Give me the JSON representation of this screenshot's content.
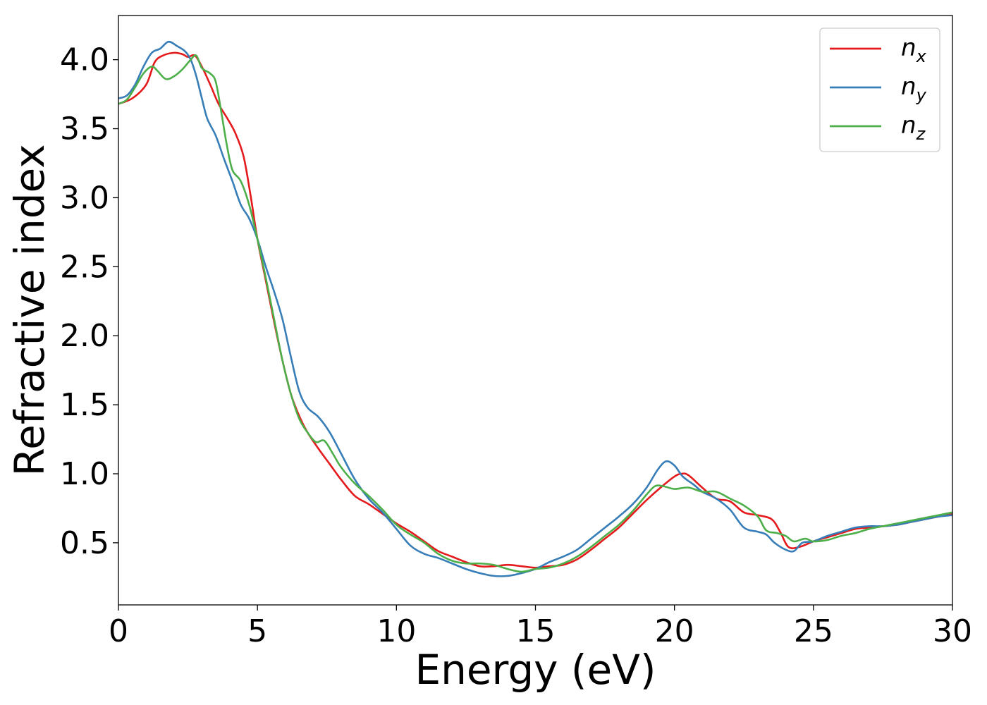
{
  "chart_data": {
    "type": "line",
    "title": "",
    "xlabel": "Energy (eV)",
    "ylabel": "Refractive index",
    "xlim": [
      0,
      30
    ],
    "ylim": [
      0.05,
      4.32
    ],
    "xticks": [
      0,
      5,
      10,
      15,
      20,
      25,
      30
    ],
    "xtick_labels": [
      "0",
      "5",
      "10",
      "15",
      "20",
      "25",
      "30"
    ],
    "yticks": [
      0.5,
      1.0,
      1.5,
      2.0,
      2.5,
      3.0,
      3.5,
      4.0
    ],
    "ytick_labels": [
      "0.5",
      "1.0",
      "1.5",
      "2.0",
      "2.5",
      "3.0",
      "3.5",
      "4.0"
    ],
    "grid": false,
    "legend_position": "top-right",
    "series": [
      {
        "name": "n",
        "subscript": "x",
        "color": "#e41a1c",
        "points": [
          [
            0,
            3.68
          ],
          [
            0.5,
            3.72
          ],
          [
            1.0,
            3.82
          ],
          [
            1.3,
            3.98
          ],
          [
            1.6,
            4.03
          ],
          [
            2.0,
            4.05
          ],
          [
            2.3,
            4.04
          ],
          [
            2.5,
            4.02
          ],
          [
            2.75,
            4.03
          ],
          [
            3.0,
            3.95
          ],
          [
            3.3,
            3.82
          ],
          [
            3.6,
            3.68
          ],
          [
            3.9,
            3.58
          ],
          [
            4.2,
            3.47
          ],
          [
            4.5,
            3.3
          ],
          [
            4.75,
            3.02
          ],
          [
            5.0,
            2.7
          ],
          [
            5.3,
            2.4
          ],
          [
            5.6,
            2.1
          ],
          [
            5.9,
            1.82
          ],
          [
            6.2,
            1.58
          ],
          [
            6.5,
            1.42
          ],
          [
            6.8,
            1.3
          ],
          [
            7.2,
            1.18
          ],
          [
            7.6,
            1.07
          ],
          [
            8.0,
            0.96
          ],
          [
            8.5,
            0.84
          ],
          [
            9.0,
            0.78
          ],
          [
            9.5,
            0.71
          ],
          [
            10.0,
            0.64
          ],
          [
            10.5,
            0.58
          ],
          [
            11.0,
            0.51
          ],
          [
            11.5,
            0.44
          ],
          [
            12.0,
            0.4
          ],
          [
            12.5,
            0.36
          ],
          [
            13.0,
            0.33
          ],
          [
            13.5,
            0.33
          ],
          [
            14.0,
            0.34
          ],
          [
            14.5,
            0.33
          ],
          [
            15.0,
            0.32
          ],
          [
            15.5,
            0.33
          ],
          [
            16.0,
            0.34
          ],
          [
            16.5,
            0.38
          ],
          [
            17.0,
            0.45
          ],
          [
            17.5,
            0.53
          ],
          [
            18.0,
            0.61
          ],
          [
            18.5,
            0.71
          ],
          [
            19.0,
            0.81
          ],
          [
            19.5,
            0.9
          ],
          [
            20.0,
            0.98
          ],
          [
            20.25,
            1.0
          ],
          [
            20.5,
            0.99
          ],
          [
            21.0,
            0.9
          ],
          [
            21.5,
            0.82
          ],
          [
            22.0,
            0.8
          ],
          [
            22.5,
            0.72
          ],
          [
            23.0,
            0.7
          ],
          [
            23.5,
            0.67
          ],
          [
            23.8,
            0.58
          ],
          [
            24.1,
            0.47
          ],
          [
            24.5,
            0.47
          ],
          [
            25.0,
            0.51
          ],
          [
            25.5,
            0.54
          ],
          [
            26.0,
            0.57
          ],
          [
            26.5,
            0.6
          ],
          [
            27.0,
            0.61
          ],
          [
            27.5,
            0.62
          ],
          [
            28.0,
            0.63
          ],
          [
            28.5,
            0.65
          ],
          [
            29.0,
            0.67
          ],
          [
            29.5,
            0.69
          ],
          [
            30.0,
            0.71
          ]
        ]
      },
      {
        "name": "n",
        "subscript": "y",
        "color": "#377eb8",
        "points": [
          [
            0,
            3.72
          ],
          [
            0.3,
            3.74
          ],
          [
            0.6,
            3.82
          ],
          [
            0.9,
            3.95
          ],
          [
            1.2,
            4.05
          ],
          [
            1.5,
            4.08
          ],
          [
            1.8,
            4.13
          ],
          [
            2.1,
            4.1
          ],
          [
            2.4,
            4.06
          ],
          [
            2.6,
            4.0
          ],
          [
            2.8,
            3.88
          ],
          [
            3.0,
            3.72
          ],
          [
            3.2,
            3.57
          ],
          [
            3.5,
            3.45
          ],
          [
            3.8,
            3.28
          ],
          [
            4.1,
            3.12
          ],
          [
            4.4,
            2.95
          ],
          [
            4.7,
            2.85
          ],
          [
            5.0,
            2.7
          ],
          [
            5.3,
            2.5
          ],
          [
            5.6,
            2.32
          ],
          [
            5.9,
            2.12
          ],
          [
            6.2,
            1.85
          ],
          [
            6.5,
            1.6
          ],
          [
            6.8,
            1.48
          ],
          [
            7.2,
            1.41
          ],
          [
            7.6,
            1.3
          ],
          [
            8.0,
            1.15
          ],
          [
            8.5,
            0.96
          ],
          [
            9.0,
            0.82
          ],
          [
            9.5,
            0.72
          ],
          [
            10.0,
            0.6
          ],
          [
            10.5,
            0.48
          ],
          [
            11.0,
            0.42
          ],
          [
            11.5,
            0.39
          ],
          [
            12.0,
            0.35
          ],
          [
            12.5,
            0.31
          ],
          [
            13.0,
            0.28
          ],
          [
            13.5,
            0.26
          ],
          [
            14.0,
            0.26
          ],
          [
            14.5,
            0.28
          ],
          [
            15.0,
            0.31
          ],
          [
            15.5,
            0.36
          ],
          [
            16.0,
            0.4
          ],
          [
            16.5,
            0.45
          ],
          [
            17.0,
            0.53
          ],
          [
            17.5,
            0.61
          ],
          [
            18.0,
            0.69
          ],
          [
            18.5,
            0.78
          ],
          [
            19.0,
            0.9
          ],
          [
            19.4,
            1.03
          ],
          [
            19.7,
            1.09
          ],
          [
            20.0,
            1.06
          ],
          [
            20.3,
            0.98
          ],
          [
            20.7,
            0.92
          ],
          [
            21.0,
            0.87
          ],
          [
            21.5,
            0.82
          ],
          [
            22.0,
            0.74
          ],
          [
            22.5,
            0.61
          ],
          [
            23.0,
            0.58
          ],
          [
            23.3,
            0.56
          ],
          [
            23.6,
            0.5
          ],
          [
            24.0,
            0.45
          ],
          [
            24.3,
            0.44
          ],
          [
            24.6,
            0.5
          ],
          [
            25.0,
            0.51
          ],
          [
            25.5,
            0.55
          ],
          [
            26.0,
            0.58
          ],
          [
            26.5,
            0.61
          ],
          [
            27.0,
            0.62
          ],
          [
            27.5,
            0.62
          ],
          [
            28.0,
            0.63
          ],
          [
            28.5,
            0.65
          ],
          [
            29.0,
            0.67
          ],
          [
            29.5,
            0.69
          ],
          [
            30.0,
            0.7
          ]
        ]
      },
      {
        "name": "n",
        "subscript": "z",
        "color": "#4daf4a",
        "points": [
          [
            0,
            3.68
          ],
          [
            0.3,
            3.71
          ],
          [
            0.6,
            3.8
          ],
          [
            0.9,
            3.9
          ],
          [
            1.2,
            3.95
          ],
          [
            1.4,
            3.92
          ],
          [
            1.7,
            3.86
          ],
          [
            2.0,
            3.88
          ],
          [
            2.3,
            3.93
          ],
          [
            2.6,
            4.0
          ],
          [
            2.8,
            4.03
          ],
          [
            3.0,
            3.94
          ],
          [
            3.3,
            3.9
          ],
          [
            3.5,
            3.84
          ],
          [
            3.7,
            3.62
          ],
          [
            3.9,
            3.38
          ],
          [
            4.1,
            3.2
          ],
          [
            4.4,
            3.12
          ],
          [
            4.7,
            2.95
          ],
          [
            5.0,
            2.7
          ],
          [
            5.3,
            2.42
          ],
          [
            5.6,
            2.12
          ],
          [
            5.9,
            1.82
          ],
          [
            6.2,
            1.58
          ],
          [
            6.5,
            1.4
          ],
          [
            6.8,
            1.3
          ],
          [
            7.1,
            1.23
          ],
          [
            7.4,
            1.24
          ],
          [
            7.7,
            1.15
          ],
          [
            8.0,
            1.05
          ],
          [
            8.5,
            0.93
          ],
          [
            9.0,
            0.84
          ],
          [
            9.5,
            0.74
          ],
          [
            10.0,
            0.63
          ],
          [
            10.5,
            0.56
          ],
          [
            11.0,
            0.5
          ],
          [
            11.5,
            0.42
          ],
          [
            12.0,
            0.37
          ],
          [
            12.5,
            0.35
          ],
          [
            13.0,
            0.35
          ],
          [
            13.5,
            0.34
          ],
          [
            14.0,
            0.31
          ],
          [
            14.5,
            0.29
          ],
          [
            15.0,
            0.31
          ],
          [
            15.5,
            0.32
          ],
          [
            16.0,
            0.35
          ],
          [
            16.5,
            0.4
          ],
          [
            17.0,
            0.47
          ],
          [
            17.5,
            0.55
          ],
          [
            18.0,
            0.63
          ],
          [
            18.5,
            0.73
          ],
          [
            19.0,
            0.85
          ],
          [
            19.3,
            0.91
          ],
          [
            19.6,
            0.91
          ],
          [
            20.0,
            0.89
          ],
          [
            20.5,
            0.9
          ],
          [
            21.0,
            0.87
          ],
          [
            21.5,
            0.87
          ],
          [
            22.0,
            0.82
          ],
          [
            22.5,
            0.77
          ],
          [
            23.0,
            0.69
          ],
          [
            23.3,
            0.59
          ],
          [
            23.7,
            0.57
          ],
          [
            24.0,
            0.55
          ],
          [
            24.3,
            0.51
          ],
          [
            24.7,
            0.53
          ],
          [
            25.0,
            0.51
          ],
          [
            25.5,
            0.52
          ],
          [
            26.0,
            0.55
          ],
          [
            26.5,
            0.57
          ],
          [
            27.0,
            0.6
          ],
          [
            27.5,
            0.62
          ],
          [
            28.0,
            0.64
          ],
          [
            28.5,
            0.66
          ],
          [
            29.0,
            0.68
          ],
          [
            29.5,
            0.7
          ],
          [
            30.0,
            0.72
          ]
        ]
      }
    ]
  }
}
